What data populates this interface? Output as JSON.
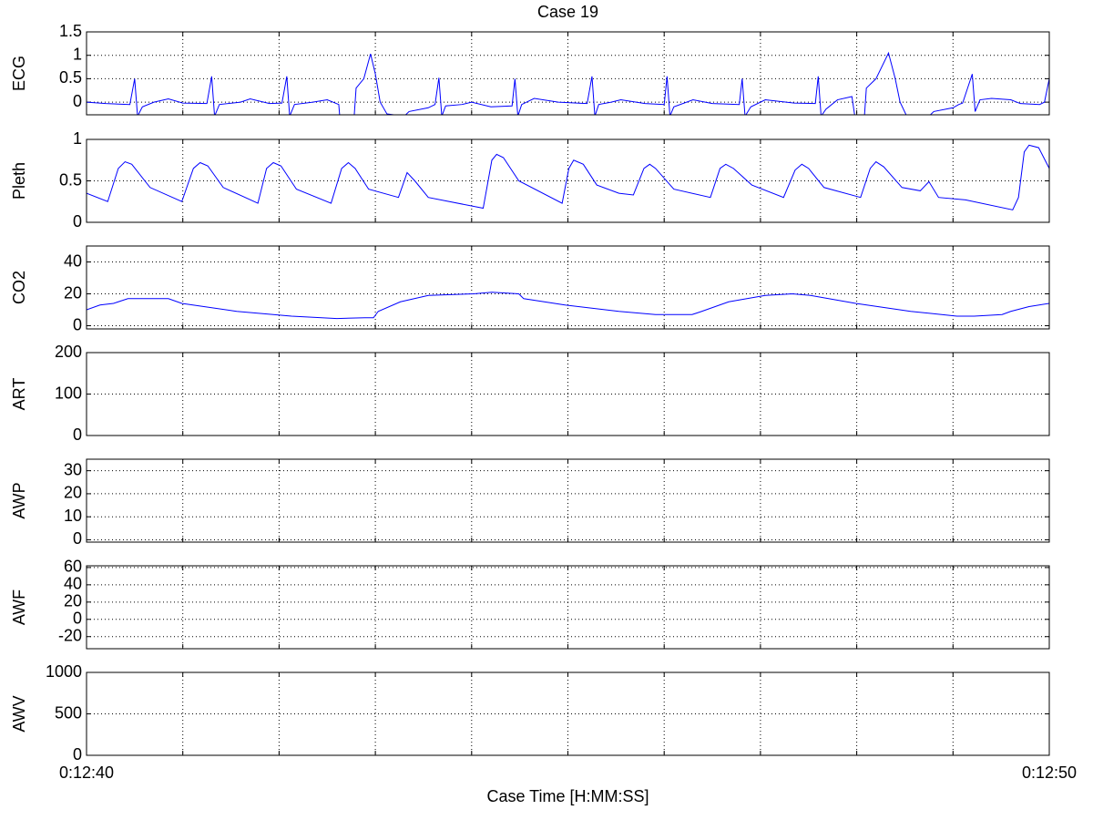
{
  "chart_data": [
    {
      "type": "line",
      "title": "Case 19",
      "ylabel": "ECG",
      "color": "#0000ff",
      "grid": true,
      "xlim": [
        760,
        770
      ],
      "xticks": [
        760,
        761,
        762,
        763,
        764,
        765,
        766,
        767,
        768,
        769,
        770
      ],
      "ylim": [
        -0.27,
        1.5
      ],
      "yticks": [
        0,
        0.5,
        1,
        1.5
      ],
      "x": [
        760,
        760.2,
        760.45,
        760.5,
        760.53,
        760.58,
        760.7,
        760.85,
        761,
        761.25,
        761.3,
        761.33,
        761.38,
        761.6,
        761.7,
        761.9,
        762.03,
        762.08,
        762.11,
        762.16,
        762.35,
        762.5,
        762.62,
        762.63,
        762.78,
        762.8,
        762.88,
        762.95,
        763,
        763.05,
        763.12,
        763.3,
        763.35,
        763.55,
        763.62,
        763.66,
        763.69,
        763.73,
        763.9,
        764,
        764.2,
        764.42,
        764.45,
        764.48,
        764.52,
        764.65,
        764.9,
        765.2,
        765.25,
        765.28,
        765.32,
        765.45,
        765.55,
        765.8,
        766,
        766.03,
        766.06,
        766.1,
        766.3,
        766.5,
        766.78,
        766.81,
        766.84,
        766.9,
        767.05,
        767.35,
        767.57,
        767.6,
        767.63,
        767.68,
        767.8,
        767.95,
        767.98,
        768.08,
        768.1,
        768.2,
        768.33,
        768.4,
        768.45,
        768.52,
        768.75,
        768.8,
        769,
        769.06,
        769.1,
        769.2,
        769.23,
        769.28,
        769.4,
        769.6,
        769.7,
        769.9,
        769.95,
        770
      ],
      "values": [
        0,
        -0.03,
        -0.05,
        0.5,
        -0.3,
        -0.1,
        0,
        0.07,
        -0.02,
        -0.03,
        0.55,
        -0.3,
        -0.05,
        0,
        0.07,
        -0.03,
        -0.02,
        0.55,
        -0.3,
        -0.05,
        0,
        0.05,
        -0.05,
        -0.3,
        -0.3,
        0.3,
        0.5,
        1.03,
        0.6,
        0,
        -0.25,
        -0.3,
        -0.2,
        -0.12,
        -0.05,
        0.52,
        -0.3,
        -0.08,
        -0.05,
        0,
        -0.1,
        -0.08,
        0.5,
        -0.3,
        -0.05,
        0.08,
        0,
        -0.03,
        0.55,
        -0.3,
        -0.05,
        0,
        0.05,
        -0.03,
        -0.05,
        0.55,
        -0.3,
        -0.1,
        0.05,
        -0.03,
        -0.05,
        0.5,
        -0.3,
        -0.1,
        0.05,
        -0.02,
        -0.03,
        0.55,
        -0.3,
        -0.15,
        0.05,
        0.12,
        -0.3,
        -0.3,
        0.3,
        0.5,
        1.05,
        0.5,
        0,
        -0.3,
        -0.3,
        -0.2,
        -0.12,
        -0.05,
        -0.02,
        0.6,
        -0.2,
        0.05,
        0.08,
        0.05,
        -0.03,
        -0.05,
        0,
        0.5
      ]
    },
    {
      "type": "line",
      "ylabel": "Pleth",
      "color": "#0000ff",
      "grid": true,
      "xlim": [
        760,
        770
      ],
      "xticks": [
        760,
        761,
        762,
        763,
        764,
        765,
        766,
        767,
        768,
        769,
        770
      ],
      "ylim": [
        0,
        1
      ],
      "yticks": [
        0,
        0.5,
        1
      ],
      "x": [
        760,
        760.22,
        760.33,
        760.4,
        760.47,
        760.66,
        760.99,
        761.11,
        761.18,
        761.26,
        761.42,
        761.78,
        761.87,
        761.94,
        762.02,
        762.18,
        762.54,
        762.65,
        762.72,
        762.79,
        762.93,
        763.24,
        763.33,
        763.41,
        763.55,
        764.12,
        764.21,
        764.26,
        764.33,
        764.49,
        764.94,
        765.01,
        765.06,
        765.16,
        765.3,
        765.53,
        765.68,
        765.79,
        765.85,
        765.91,
        766.1,
        766.48,
        766.58,
        766.64,
        766.72,
        766.91,
        767.24,
        767.36,
        767.43,
        767.5,
        767.66,
        768.04,
        768.14,
        768.2,
        768.28,
        768.47,
        768.66,
        768.75,
        768.85,
        769.13,
        769.62,
        769.68,
        769.74,
        769.79,
        769.89,
        770
      ],
      "values": [
        0.35,
        0.25,
        0.65,
        0.73,
        0.7,
        0.42,
        0.25,
        0.65,
        0.72,
        0.68,
        0.42,
        0.23,
        0.65,
        0.72,
        0.68,
        0.4,
        0.23,
        0.65,
        0.72,
        0.65,
        0.4,
        0.3,
        0.6,
        0.5,
        0.3,
        0.17,
        0.75,
        0.82,
        0.78,
        0.5,
        0.23,
        0.65,
        0.75,
        0.7,
        0.45,
        0.35,
        0.33,
        0.65,
        0.7,
        0.65,
        0.4,
        0.3,
        0.65,
        0.7,
        0.65,
        0.45,
        0.3,
        0.63,
        0.7,
        0.65,
        0.42,
        0.3,
        0.65,
        0.73,
        0.67,
        0.42,
        0.38,
        0.49,
        0.3,
        0.27,
        0.15,
        0.3,
        0.85,
        0.93,
        0.9,
        0.65
      ]
    },
    {
      "type": "line",
      "ylabel": "CO2",
      "color": "#0000ff",
      "grid": true,
      "xlim": [
        760,
        770
      ],
      "xticks": [
        760,
        761,
        762,
        763,
        764,
        765,
        766,
        767,
        768,
        769,
        770
      ],
      "ylim": [
        -2,
        50
      ],
      "yticks": [
        0,
        20,
        40
      ],
      "x": [
        760,
        760.14,
        760.28,
        760.43,
        760.85,
        760.99,
        761.56,
        762.13,
        762.6,
        762.89,
        762.98,
        763.03,
        763.26,
        763.55,
        764.02,
        764.21,
        764.49,
        764.54,
        764.97,
        765.53,
        765.91,
        766.29,
        766.39,
        766.67,
        767.05,
        767.33,
        767.52,
        767.99,
        768.56,
        769.04,
        769.22,
        769.51,
        769.6,
        769.79,
        770
      ],
      "values": [
        10,
        13,
        14,
        17,
        17,
        14,
        9,
        6,
        4.5,
        5,
        5,
        9,
        15,
        19,
        20,
        21,
        20,
        17,
        13,
        9,
        7,
        7,
        9,
        15,
        19,
        20,
        19,
        14,
        9,
        6,
        6,
        7,
        9,
        12,
        14
      ]
    },
    {
      "type": "line",
      "ylabel": "ART",
      "grid": true,
      "xlim": [
        760,
        770
      ],
      "xticks": [
        760,
        761,
        762,
        763,
        764,
        765,
        766,
        767,
        768,
        769,
        770
      ],
      "ylim": [
        0,
        200
      ],
      "yticks": [
        0,
        100,
        200
      ]
    },
    {
      "type": "line",
      "ylabel": "AWP",
      "grid": true,
      "xlim": [
        760,
        770
      ],
      "xticks": [
        760,
        761,
        762,
        763,
        764,
        765,
        766,
        767,
        768,
        769,
        770
      ],
      "ylim": [
        -1,
        35
      ],
      "yticks": [
        0,
        10,
        20,
        30
      ]
    },
    {
      "type": "line",
      "ylabel": "AWF",
      "grid": true,
      "xlim": [
        760,
        770
      ],
      "xticks": [
        760,
        761,
        762,
        763,
        764,
        765,
        766,
        767,
        768,
        769,
        770
      ],
      "ylim": [
        -34,
        62
      ],
      "yticks": [
        -20,
        0,
        20,
        40,
        60
      ]
    },
    {
      "type": "line",
      "ylabel": "AWV",
      "xlabel": "Case Time [H:MM:SS]",
      "grid": true,
      "xlim": [
        760,
        770
      ],
      "xticks": [
        {
          "value": 760,
          "label": "0:12:40"
        },
        761,
        762,
        763,
        764,
        765,
        766,
        767,
        768,
        769,
        {
          "value": 770,
          "label": "0:12:50"
        }
      ],
      "ylim": [
        0,
        1000
      ],
      "yticks": [
        0,
        500,
        1000
      ]
    }
  ]
}
